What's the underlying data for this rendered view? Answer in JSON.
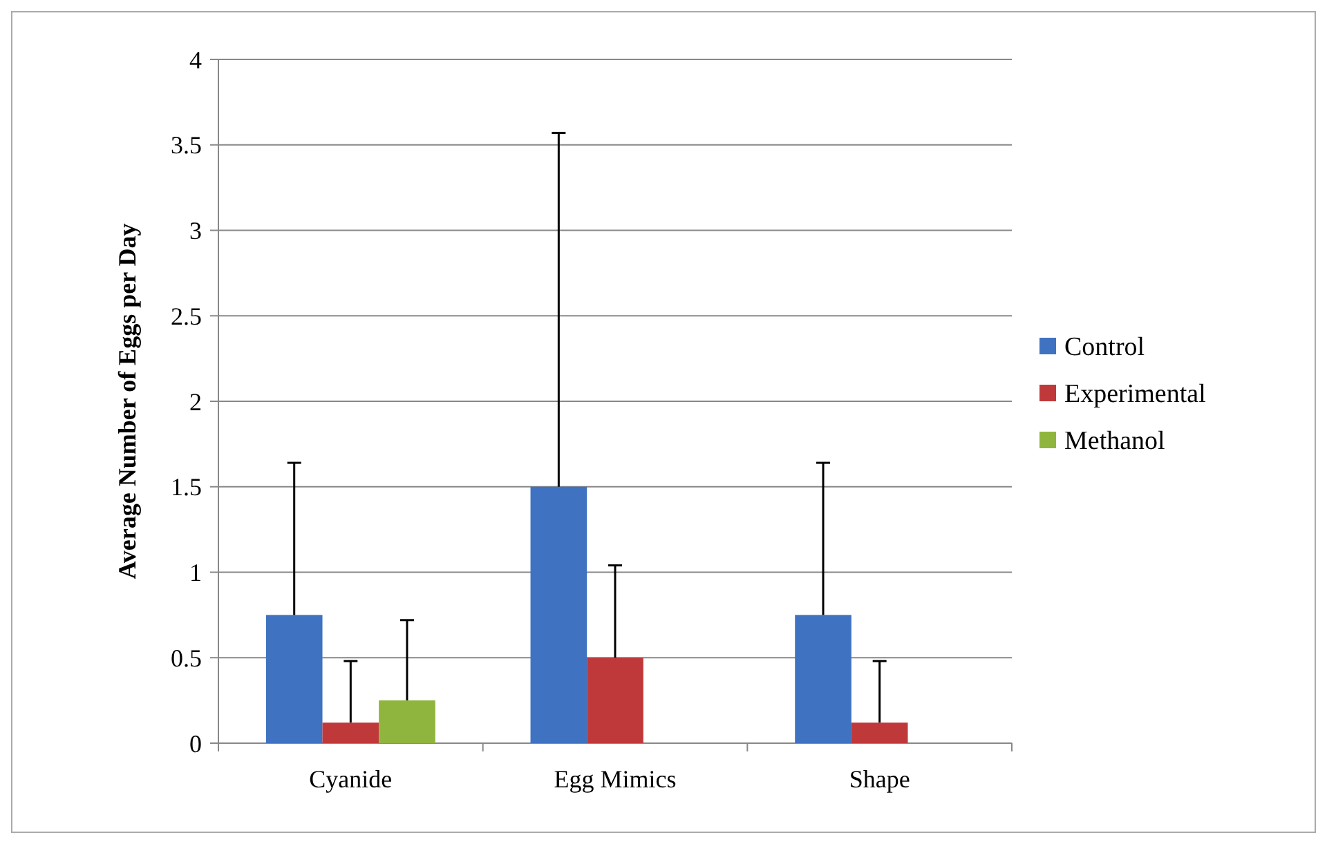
{
  "chart_data": {
    "type": "bar",
    "ylabel": "Average Number of Eggs per Day",
    "categories": [
      "Cyanide",
      "Egg Mimics",
      "Shape"
    ],
    "series": [
      {
        "name": "Control",
        "color": "#3f72c0",
        "values": [
          0.75,
          1.5,
          0.75
        ],
        "errors": [
          [
            0.75,
            1.64
          ],
          [
            1.5,
            3.57
          ],
          [
            0.75,
            1.64
          ]
        ]
      },
      {
        "name": "Experimental",
        "color": "#c0393a",
        "values": [
          0.12,
          0.5,
          0.12
        ],
        "errors": [
          [
            0.12,
            0.48
          ],
          [
            0.5,
            1.04
          ],
          [
            0.12,
            0.48
          ]
        ]
      },
      {
        "name": "Methanol",
        "color": "#8fb53e",
        "values": [
          0.25,
          null,
          null
        ],
        "errors": [
          [
            0.25,
            0.72
          ],
          null,
          null
        ]
      }
    ],
    "ylim": [
      0,
      4
    ],
    "yticks": [
      0,
      0.5,
      1,
      1.5,
      2,
      2.5,
      3,
      3.5,
      4
    ],
    "grid": "y",
    "legend": "right"
  }
}
